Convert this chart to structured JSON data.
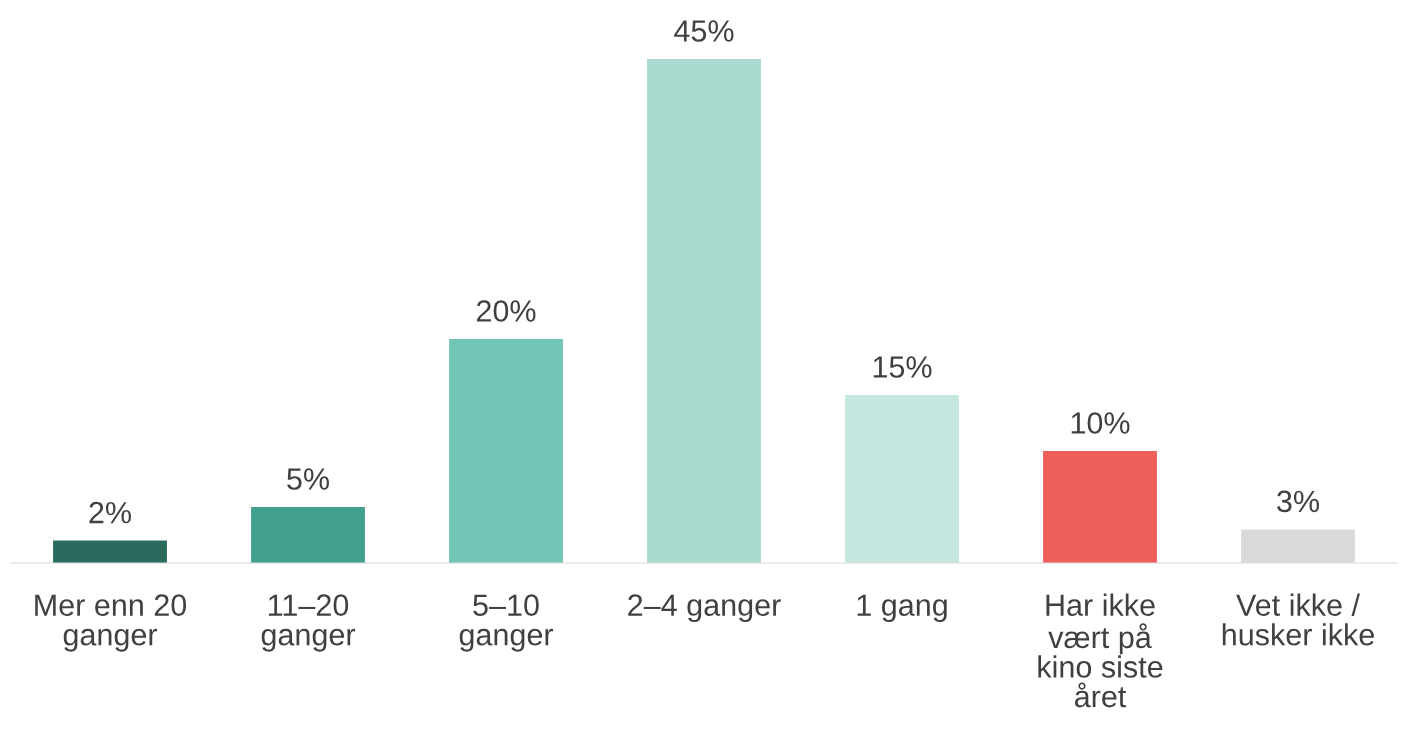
{
  "chart_data": {
    "type": "bar",
    "categories": [
      "Mer enn 20\nganger",
      "11–20\nganger",
      "5–10\nganger",
      "2–4 ganger",
      "1 gang",
      "Har ikke\nvært på\nkino siste\nåret",
      "Vet ikke /\nhusker ikke"
    ],
    "values": [
      2,
      5,
      20,
      45,
      15,
      10,
      3
    ],
    "value_labels": [
      "2%",
      "5%",
      "20%",
      "45%",
      "15%",
      "10%",
      "3%"
    ],
    "colors": [
      "#2a6b5e",
      "#43a08e",
      "#72c4b4",
      "#a9dbd0",
      "#c6e6e0",
      "#f0605a",
      "#d9d9d9"
    ],
    "grid": false,
    "legend": false
  }
}
